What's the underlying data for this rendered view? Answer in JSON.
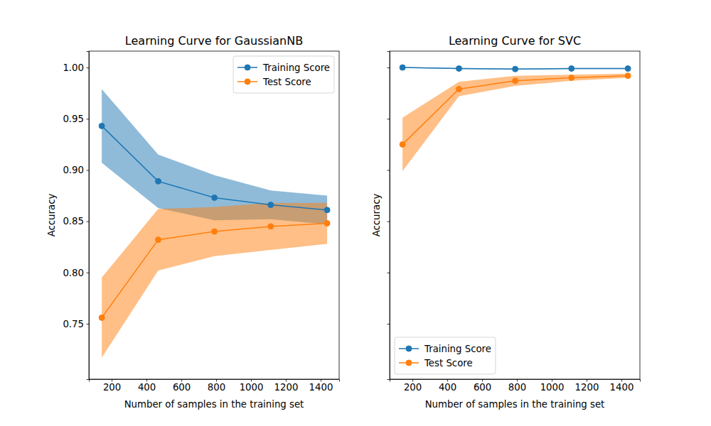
{
  "chart_data": [
    {
      "type": "line",
      "title": "Learning Curve for GaussianNB",
      "x_label": "Number of samples in the training set",
      "y_label": "Accuracy",
      "x": [
        143,
        467,
        790,
        1113,
        1437
      ],
      "xlim": [
        69,
        1506
      ],
      "ylim": [
        0.696,
        1.016
      ],
      "xticks": [
        200,
        400,
        600,
        800,
        1000,
        1200,
        1400
      ],
      "yticks": [
        0.75,
        {
          "value": 0.8,
          "label": "0.80"
        },
        0.85,
        {
          "value": 0.9,
          "label": "0.90"
        },
        0.95,
        {
          "value": 1.0,
          "label": "1.00"
        }
      ],
      "legend": "upper right",
      "marker": "o",
      "series": [
        {
          "name": "Training Score",
          "color": "#1f77b4",
          "values": [
            0.943,
            0.889,
            0.873,
            0.866,
            0.861
          ],
          "std": [
            0.036,
            0.026,
            0.022,
            0.014,
            0.014
          ]
        },
        {
          "name": "Test Score",
          "color": "#ff7f0e",
          "values": [
            0.756,
            0.832,
            0.84,
            0.845,
            0.848
          ],
          "std": [
            0.039,
            0.03,
            0.024,
            0.023,
            0.02
          ]
        }
      ]
    },
    {
      "type": "line",
      "title": "Learning Curve for SVC",
      "x_label": "Number of samples in the training set",
      "y_label": "Accuracy",
      "x": [
        143,
        467,
        790,
        1113,
        1437
      ],
      "xlim": [
        69,
        1506
      ],
      "ylim": [
        0.696,
        1.016
      ],
      "xticks": [
        200,
        400,
        600,
        800,
        1000,
        1200,
        1400
      ],
      "yticks": [
        0.75,
        0.8,
        0.85,
        0.9,
        0.95,
        1.0
      ],
      "tick_labels": "x",
      "legend": "lower left",
      "marker": "o",
      "series": [
        {
          "name": "Training Score",
          "color": "#1f77b4",
          "values": [
            1.0,
            0.999,
            0.9985,
            0.999,
            0.999
          ],
          "std": [
            0.0005,
            0.0005,
            0.0005,
            0.0005,
            0.0005
          ]
        },
        {
          "name": "Test Score",
          "color": "#ff7f0e",
          "values": [
            0.925,
            0.979,
            0.987,
            0.99,
            0.992
          ],
          "std": [
            0.026,
            0.007,
            0.005,
            0.003,
            0.002
          ]
        }
      ]
    }
  ]
}
